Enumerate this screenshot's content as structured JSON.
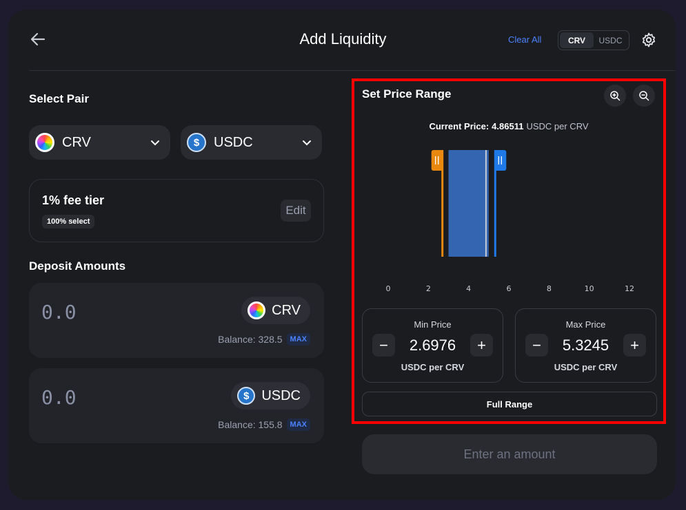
{
  "header": {
    "title": "Add Liquidity",
    "clear_all": "Clear All",
    "toggle": [
      "CRV",
      "USDC"
    ],
    "active_toggle": "CRV"
  },
  "pair": {
    "label": "Select Pair",
    "token_a": "CRV",
    "token_b": "USDC",
    "usdc_symbol": "$"
  },
  "fee": {
    "title": "1% fee tier",
    "badge": "100% select",
    "edit_label": "Edit"
  },
  "deposit": {
    "label": "Deposit Amounts",
    "rows": [
      {
        "value": "0.0",
        "token": "CRV",
        "balance": "Balance: 328.5",
        "max": "MAX"
      },
      {
        "value": "0.0",
        "token": "USDC",
        "balance": "Balance: 155.8",
        "max": "MAX"
      }
    ]
  },
  "range": {
    "title": "Set Price Range",
    "current_label": "Current Price:",
    "current_value": "4.86511",
    "current_unit": "USDC per CRV",
    "min_label": "Min Price",
    "min_value": "2.6976",
    "max_label": "Max Price",
    "max_value": "5.3245",
    "unit": "USDC per CRV",
    "minus": "−",
    "plus": "+",
    "full_range": "Full Range"
  },
  "chart_data": {
    "type": "bar",
    "x_ticks": [
      0,
      2,
      4,
      6,
      8,
      10,
      12
    ],
    "xlim": [
      0,
      12
    ],
    "liquidity_band": [
      3.0,
      5.0
    ],
    "current_price": 4.86511,
    "min_handle": 2.6976,
    "max_handle": 5.3245,
    "colors": {
      "band": "#3465b0",
      "min_handle": "#e8880e",
      "max_handle": "#1f7ae8",
      "current": "#c9ccd4"
    }
  },
  "submit": {
    "label": "Enter an amount"
  }
}
